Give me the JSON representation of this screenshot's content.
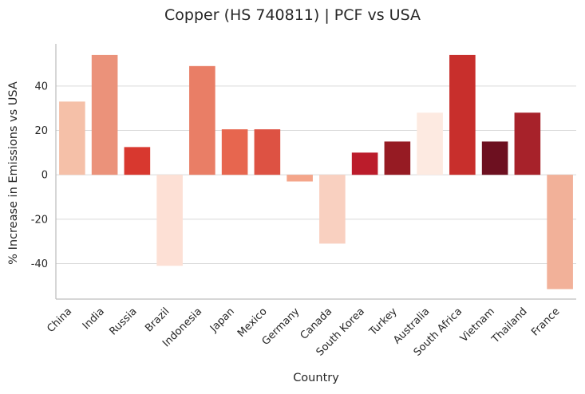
{
  "chart_data": {
    "type": "bar",
    "title": "Copper (HS 740811) | PCF vs USA",
    "xlabel": "Country",
    "ylabel": "% Increase in Emissions vs USA",
    "categories": [
      "China",
      "India",
      "Russia",
      "Brazil",
      "Indonesia",
      "Japan",
      "Mexico",
      "Germany",
      "Canada",
      "South Korea",
      "Turkey",
      "Australia",
      "South Africa",
      "Vietnam",
      "Thailand",
      "France"
    ],
    "values": [
      33,
      54,
      12.5,
      -41,
      49,
      20.5,
      20.5,
      -3,
      -31,
      10,
      15,
      28,
      54,
      15,
      28,
      -51.5
    ],
    "colors": [
      "#f5c0a8",
      "#eb927a",
      "#d8382f",
      "#fde0d5",
      "#e97e66",
      "#e7664f",
      "#dd5243",
      "#f4a58a",
      "#f9d0c0",
      "#bb1c2b",
      "#961b23",
      "#fdeae1",
      "#c82f2c",
      "#6d1020",
      "#a7222a",
      "#f2b199"
    ],
    "yticks": [
      -40,
      -20,
      0,
      20,
      40
    ],
    "ylim": [
      -56,
      59
    ],
    "grid": "horizontal",
    "legend": "none"
  }
}
